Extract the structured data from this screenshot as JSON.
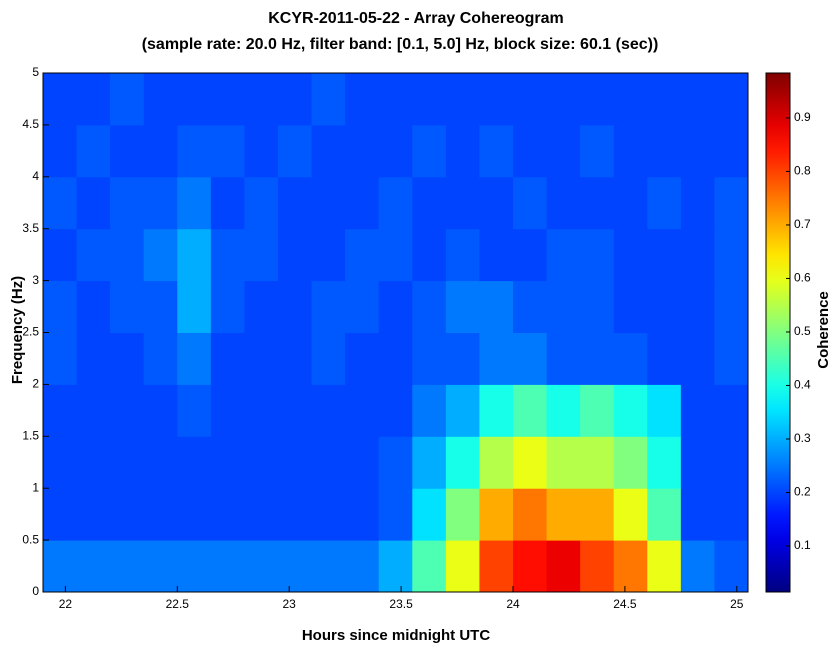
{
  "chart_data": {
    "type": "heatmap",
    "title": "KCYR-2011-05-22 - Array Cohereogram",
    "subtitle": "(sample rate: 20.0 Hz, filter band: [0.1, 5.0] Hz, block size: 60.1 (sec))",
    "x_label": "Hours since midnight UTC",
    "y_label": "Frequency (Hz)",
    "colorbar_label": "Coherence",
    "colormap": "jet",
    "x": [
      21.975,
      22.125,
      22.275,
      22.425,
      22.575,
      22.725,
      22.875,
      23.025,
      23.175,
      23.325,
      23.475,
      23.625,
      23.775,
      23.925,
      24.075,
      24.225,
      24.375,
      24.525,
      24.675,
      24.825,
      24.975
    ],
    "y": [
      0.25,
      0.75,
      1.25,
      1.75,
      2.25,
      2.75,
      3.25,
      3.75,
      4.25,
      4.75
    ],
    "z": [
      [
        0.25,
        0.25,
        0.25,
        0.25,
        0.25,
        0.25,
        0.25,
        0.25,
        0.25,
        0.25,
        0.3,
        0.45,
        0.6,
        0.8,
        0.85,
        0.88,
        0.8,
        0.75,
        0.6,
        0.25,
        0.22
      ],
      [
        0.2,
        0.2,
        0.2,
        0.2,
        0.2,
        0.2,
        0.2,
        0.2,
        0.2,
        0.2,
        0.22,
        0.35,
        0.5,
        0.7,
        0.75,
        0.7,
        0.7,
        0.6,
        0.45,
        0.2,
        0.2
      ],
      [
        0.2,
        0.2,
        0.2,
        0.2,
        0.2,
        0.2,
        0.2,
        0.2,
        0.2,
        0.2,
        0.22,
        0.3,
        0.4,
        0.55,
        0.6,
        0.55,
        0.55,
        0.5,
        0.4,
        0.2,
        0.2
      ],
      [
        0.2,
        0.2,
        0.2,
        0.2,
        0.22,
        0.2,
        0.2,
        0.2,
        0.2,
        0.2,
        0.2,
        0.25,
        0.3,
        0.4,
        0.45,
        0.4,
        0.45,
        0.4,
        0.35,
        0.2,
        0.2
      ],
      [
        0.22,
        0.2,
        0.2,
        0.22,
        0.25,
        0.2,
        0.2,
        0.2,
        0.22,
        0.2,
        0.2,
        0.22,
        0.22,
        0.25,
        0.25,
        0.22,
        0.22,
        0.22,
        0.2,
        0.2,
        0.22
      ],
      [
        0.22,
        0.2,
        0.22,
        0.22,
        0.3,
        0.22,
        0.2,
        0.2,
        0.22,
        0.22,
        0.2,
        0.22,
        0.25,
        0.25,
        0.22,
        0.22,
        0.22,
        0.2,
        0.2,
        0.2,
        0.22
      ],
      [
        0.2,
        0.22,
        0.22,
        0.25,
        0.3,
        0.22,
        0.22,
        0.2,
        0.2,
        0.22,
        0.22,
        0.2,
        0.22,
        0.2,
        0.2,
        0.22,
        0.22,
        0.2,
        0.2,
        0.2,
        0.22
      ],
      [
        0.22,
        0.2,
        0.22,
        0.22,
        0.25,
        0.2,
        0.22,
        0.2,
        0.2,
        0.2,
        0.22,
        0.2,
        0.2,
        0.2,
        0.22,
        0.2,
        0.2,
        0.2,
        0.22,
        0.2,
        0.22
      ],
      [
        0.2,
        0.22,
        0.2,
        0.2,
        0.22,
        0.22,
        0.2,
        0.22,
        0.2,
        0.2,
        0.2,
        0.22,
        0.2,
        0.22,
        0.2,
        0.2,
        0.22,
        0.2,
        0.2,
        0.2,
        0.2
      ],
      [
        0.2,
        0.2,
        0.22,
        0.2,
        0.2,
        0.2,
        0.2,
        0.2,
        0.22,
        0.2,
        0.2,
        0.2,
        0.2,
        0.2,
        0.2,
        0.2,
        0.2,
        0.2,
        0.2,
        0.2,
        0.2
      ]
    ],
    "xlim": [
      21.9,
      25.05
    ],
    "ylim": [
      0,
      5
    ],
    "zlim": [
      0.014,
      0.984
    ],
    "xticks": [
      22,
      22.5,
      23,
      23.5,
      24,
      24.5,
      25
    ],
    "yticks": [
      0,
      0.5,
      1,
      1.5,
      2,
      2.5,
      3,
      3.5,
      4,
      4.5,
      5
    ],
    "zticks": [
      0.1,
      0.2,
      0.3,
      0.4,
      0.5,
      0.6,
      0.7,
      0.8,
      0.9
    ]
  }
}
